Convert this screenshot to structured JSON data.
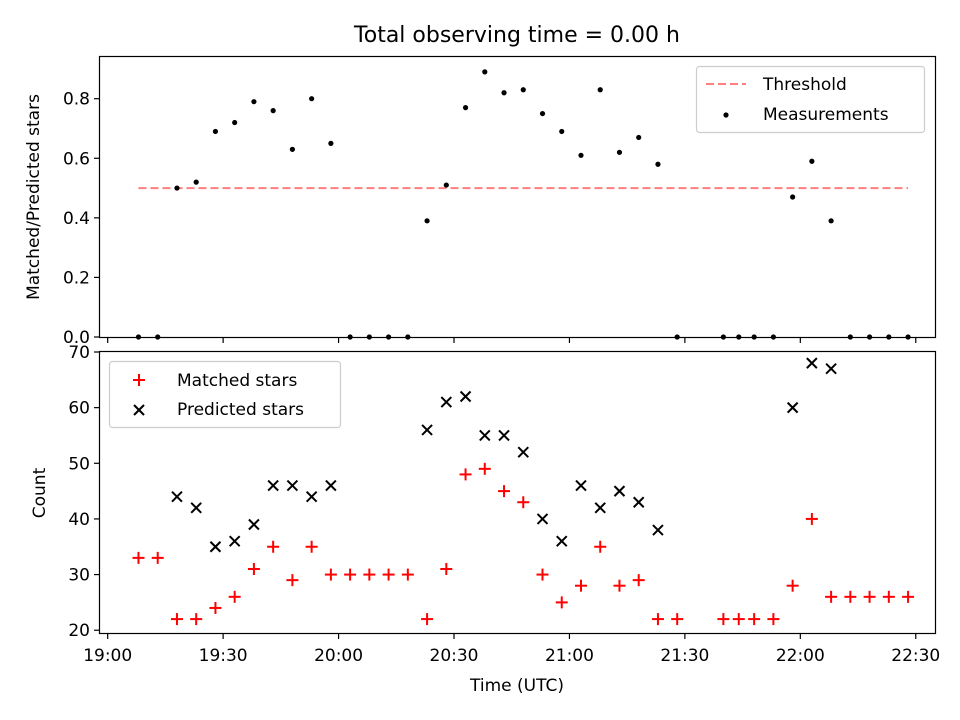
{
  "title": "Total observing time = 0.00 h",
  "chart_data": [
    {
      "type": "scatter",
      "title": "Total observing time = 0.00 h",
      "xlabel": "",
      "ylabel": "Matched/Predicted stars",
      "xlim": [
        "18:58",
        "22:35"
      ],
      "ylim": [
        0,
        0.94
      ],
      "yticks": [
        0.0,
        0.2,
        0.4,
        0.6,
        0.8
      ],
      "yticklabels": [
        "0.0",
        "0.2",
        "0.4",
        "0.6",
        "0.8"
      ],
      "grid": false,
      "legend_position": "upper right",
      "threshold": {
        "name": "Threshold",
        "value": 0.5,
        "x_range": [
          "19:08",
          "22:28"
        ],
        "color": "#ff7f7f",
        "style": "dashed"
      },
      "series": [
        {
          "name": "Measurements",
          "color": "#000000",
          "marker": "dot",
          "x": [
            "19:08",
            "19:13",
            "19:18",
            "19:23",
            "19:28",
            "19:33",
            "19:38",
            "19:43",
            "19:48",
            "19:53",
            "19:58",
            "20:03",
            "20:08",
            "20:13",
            "20:18",
            "20:23",
            "20:28",
            "20:33",
            "20:38",
            "20:43",
            "20:48",
            "20:53",
            "20:58",
            "21:03",
            "21:08",
            "21:13",
            "21:18",
            "21:23",
            "21:28",
            "21:40",
            "21:44",
            "21:48",
            "21:53",
            "21:58",
            "22:03",
            "22:08",
            "22:13",
            "22:18",
            "22:23",
            "22:28"
          ],
          "y": [
            0.0,
            0.0,
            0.5,
            0.52,
            0.69,
            0.72,
            0.79,
            0.76,
            0.63,
            0.8,
            0.65,
            0.0,
            0.0,
            0.0,
            0.0,
            0.39,
            0.51,
            0.77,
            0.89,
            0.82,
            0.83,
            0.75,
            0.69,
            0.61,
            0.83,
            0.62,
            0.67,
            0.58,
            0.0,
            0.0,
            0.0,
            0.0,
            0.0,
            0.47,
            0.59,
            0.39,
            0.0,
            0.0,
            0.0,
            0.0
          ]
        }
      ]
    },
    {
      "type": "scatter",
      "title": "",
      "xlabel": "Time (UTC)",
      "ylabel": "Count",
      "xlim": [
        "18:58",
        "22:35"
      ],
      "ylim": [
        19.5,
        70
      ],
      "yticks": [
        20,
        30,
        40,
        50,
        60,
        70
      ],
      "yticklabels": [
        "20",
        "30",
        "40",
        "50",
        "60",
        "70"
      ],
      "xticks": [
        "19:00",
        "19:30",
        "20:00",
        "20:30",
        "21:00",
        "21:30",
        "22:00",
        "22:30"
      ],
      "grid": false,
      "legend_position": "upper left",
      "series": [
        {
          "name": "Matched stars",
          "color": "#ff0000",
          "marker": "plus",
          "x": [
            "19:08",
            "19:13",
            "19:18",
            "19:23",
            "19:28",
            "19:33",
            "19:38",
            "19:43",
            "19:48",
            "19:53",
            "19:58",
            "20:03",
            "20:08",
            "20:13",
            "20:18",
            "20:23",
            "20:28",
            "20:33",
            "20:38",
            "20:43",
            "20:48",
            "20:53",
            "20:58",
            "21:03",
            "21:08",
            "21:13",
            "21:18",
            "21:23",
            "21:28",
            "21:40",
            "21:44",
            "21:48",
            "21:53",
            "21:58",
            "22:03",
            "22:08",
            "22:13",
            "22:18",
            "22:23",
            "22:28"
          ],
          "y": [
            33,
            33,
            22,
            22,
            24,
            26,
            31,
            35,
            29,
            35,
            30,
            30,
            30,
            30,
            30,
            22,
            31,
            48,
            49,
            45,
            43,
            30,
            25,
            28,
            35,
            28,
            29,
            22,
            22,
            22,
            22,
            22,
            22,
            28,
            40,
            26,
            26,
            26,
            26,
            26
          ]
        },
        {
          "name": "Predicted stars",
          "color": "#000000",
          "marker": "x",
          "x": [
            "19:18",
            "19:23",
            "19:28",
            "19:33",
            "19:38",
            "19:43",
            "19:48",
            "19:53",
            "19:58",
            "20:23",
            "20:28",
            "20:33",
            "20:38",
            "20:43",
            "20:48",
            "20:53",
            "20:58",
            "21:03",
            "21:08",
            "21:13",
            "21:18",
            "21:23",
            "21:58",
            "22:03",
            "22:08"
          ],
          "y": [
            44,
            42,
            35,
            36,
            39,
            46,
            46,
            44,
            46,
            56,
            61,
            62,
            55,
            55,
            52,
            40,
            36,
            46,
            42,
            45,
            43,
            38,
            60,
            68,
            67
          ]
        }
      ]
    }
  ]
}
